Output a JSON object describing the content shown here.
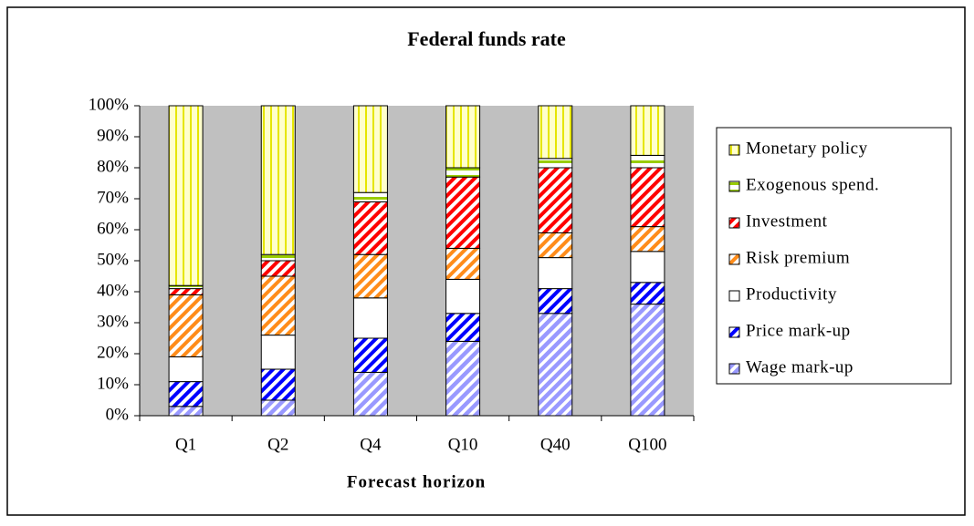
{
  "chart_data": {
    "type": "stacked-bar",
    "title": "Federal funds rate",
    "x_label": "Forecast horizon",
    "categories": [
      "Q1",
      "Q2",
      "Q4",
      "Q10",
      "Q40",
      "Q100"
    ],
    "series": [
      {
        "name": "Wage mark-up",
        "color": "#9999ff",
        "values": [
          3,
          5,
          14,
          24,
          33,
          36
        ]
      },
      {
        "name": "Price mark-up",
        "color": "#0000ff",
        "values": [
          8,
          10,
          11,
          9,
          8,
          7
        ]
      },
      {
        "name": "Productivity",
        "color": "#ffffff",
        "values": [
          8,
          11,
          13,
          11,
          10,
          10
        ]
      },
      {
        "name": "Risk premium",
        "color": "#ff8c1a",
        "values": [
          20,
          19,
          14,
          10,
          8,
          8
        ]
      },
      {
        "name": "Investment",
        "color": "#ff0000",
        "values": [
          2,
          5,
          17,
          23,
          21,
          19
        ]
      },
      {
        "name": "Exogenous spend.",
        "color": "#99cc00",
        "values": [
          1,
          2,
          3,
          3,
          3,
          4
        ]
      },
      {
        "name": "Monetary policy",
        "color": "#ffff66",
        "values": [
          58,
          48,
          28,
          20,
          17,
          16
        ]
      }
    ],
    "ylim": [
      0,
      100
    ],
    "yticks": [
      {
        "value": 0,
        "label": "0%"
      },
      {
        "value": 10,
        "label": "10%"
      },
      {
        "value": 20,
        "label": "20%"
      },
      {
        "value": 30,
        "label": "30%"
      },
      {
        "value": 40,
        "label": "40%"
      },
      {
        "value": 50,
        "label": "50%"
      },
      {
        "value": 60,
        "label": "60%"
      },
      {
        "value": 70,
        "label": "70%"
      },
      {
        "value": 80,
        "label": "80%"
      },
      {
        "value": 90,
        "label": "90%"
      },
      {
        "value": 100,
        "label": "100%"
      }
    ],
    "grid": false,
    "legend": "right"
  }
}
